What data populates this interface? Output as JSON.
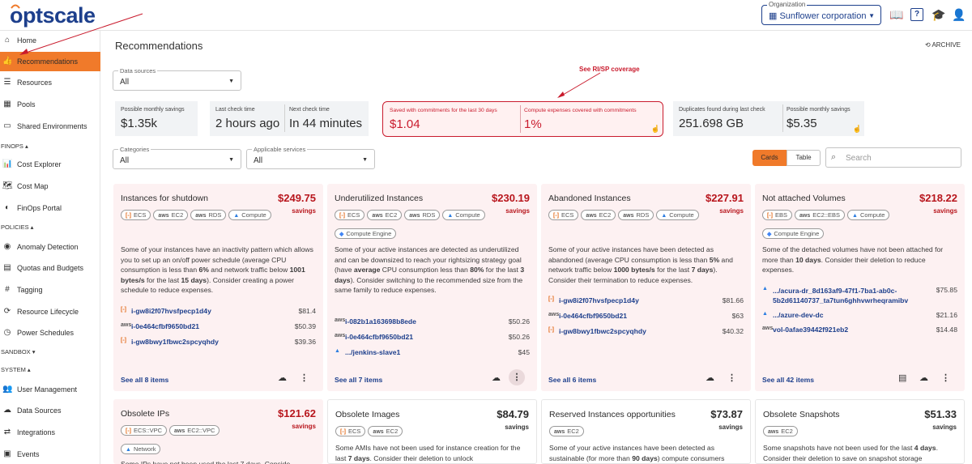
{
  "brand": {
    "logo": "optscale"
  },
  "header": {
    "org_label": "Organization",
    "org_value": "Sunflower corporation"
  },
  "sidebar": {
    "items": [
      {
        "label": "Home",
        "icon": "home-icon",
        "glyph": "⌂"
      },
      {
        "label": "Recommendations",
        "icon": "thumbs-up-icon",
        "glyph": "👍"
      },
      {
        "label": "Resources",
        "icon": "list-icon",
        "glyph": "☰"
      },
      {
        "label": "Pools",
        "icon": "pools-icon",
        "glyph": "▦"
      },
      {
        "label": "Shared Environments",
        "icon": "environment-icon",
        "glyph": "▭"
      },
      {
        "label": "Cost Explorer",
        "icon": "cost-explorer-icon",
        "glyph": "📊"
      },
      {
        "label": "Cost Map",
        "icon": "map-icon",
        "glyph": "🗺"
      },
      {
        "label": "FinOps Portal",
        "icon": "finops-portal-icon",
        "glyph": "◐"
      },
      {
        "label": "Anomaly Detection",
        "icon": "anomaly-icon",
        "glyph": "◉"
      },
      {
        "label": "Quotas and Budgets",
        "icon": "quotas-icon",
        "glyph": "▤"
      },
      {
        "label": "Tagging",
        "icon": "hash-icon",
        "glyph": "#"
      },
      {
        "label": "Resource Lifecycle",
        "icon": "lifecycle-icon",
        "glyph": "⟳"
      },
      {
        "label": "Power Schedules",
        "icon": "clock-icon",
        "glyph": "◷"
      },
      {
        "label": "User Management",
        "icon": "users-icon",
        "glyph": "👥"
      },
      {
        "label": "Data Sources",
        "icon": "cloud-icon",
        "glyph": "☁"
      },
      {
        "label": "Integrations",
        "icon": "integrations-icon",
        "glyph": "⇄"
      },
      {
        "label": "Events",
        "icon": "calendar-icon",
        "glyph": "▣"
      }
    ],
    "groups": {
      "finops": "FINOPS ▴",
      "policies": "POLICIES ▴",
      "sandbox": "SANDBOX ▾",
      "system": "SYSTEM ▴"
    }
  },
  "page": {
    "title": "Recommendations",
    "archive": "ARCHIVE"
  },
  "filters": {
    "data_sources": {
      "label": "Data sources",
      "value": "All"
    },
    "categories": {
      "label": "Categories",
      "value": "All"
    },
    "applicable_services": {
      "label": "Applicable services",
      "value": "All"
    },
    "search_placeholder": "Search"
  },
  "stats": {
    "possible_savings": {
      "label": "Possible monthly savings",
      "value": "$1.35k"
    },
    "last_check": {
      "label": "Last check time",
      "value": "2 hours ago"
    },
    "next_check": {
      "label": "Next check time",
      "value": "In 44 minutes"
    },
    "saved_commitments": {
      "label": "Saved with commitments for the last 30 days",
      "value": "$1.04"
    },
    "compute_covered": {
      "label": "Compute expenses covered with commitments",
      "value": "1%"
    },
    "duplicates": {
      "label": "Duplicates found during last check",
      "value": "251.698 GB"
    },
    "possible_savings_2": {
      "label": "Possible monthly savings",
      "value": "$5.35"
    }
  },
  "annotation": "See RI/SP coverage",
  "view_toggle": {
    "cards": "Cards",
    "table": "Table"
  },
  "cards": [
    {
      "title": "Instances for shutdown",
      "amount": "$249.75",
      "savings": "savings",
      "tags": [
        {
          "label": "ECS",
          "ic": "[-]",
          "c": "o"
        },
        {
          "label": "EC2",
          "ic": "aws",
          "c": "a"
        },
        {
          "label": "RDS",
          "ic": "aws",
          "c": "a"
        },
        {
          "label": "Compute",
          "ic": "▲",
          "c": "b"
        }
      ],
      "desc": "Some of your instances have an inactivity pattern which allows you to set up an on/off power schedule (average CPU consumption is less than <b>6%</b> and network traffic below <b>1001 bytes/s</b> for the last <b>15 days</b>). Consider creating a power schedule to reduce expenses.",
      "resources": [
        {
          "name": "i-gw8i2f07hvsfpecp1d4y",
          "value": "$81.4",
          "ic": "[-]",
          "c": "o"
        },
        {
          "name": "i-0e464cfbf9650bd21",
          "value": "$50.39",
          "ic": "aws",
          "c": "a"
        },
        {
          "name": "i-gw8bwy1fbwc2spcyqhdy",
          "value": "$39.36",
          "ic": "[-]",
          "c": "o"
        }
      ],
      "see_all": "See all 8 items"
    },
    {
      "title": "Underutilized Instances",
      "amount": "$230.19",
      "savings": "savings",
      "tags": [
        {
          "label": "ECS",
          "ic": "[-]",
          "c": "o"
        },
        {
          "label": "EC2",
          "ic": "aws",
          "c": "a"
        },
        {
          "label": "RDS",
          "ic": "aws",
          "c": "a"
        },
        {
          "label": "Compute",
          "ic": "▲",
          "c": "b"
        },
        {
          "label": "Compute Engine",
          "ic": "◆",
          "c": "g"
        }
      ],
      "desc": "Some of your active instances are detected as underutilized and can be downsized to reach your rightsizing strategy goal (have <b>average</b> CPU consumption less than <b>80%</b> for the last <b>3 days</b>). Consider switching to the recommended size from the same family to reduce expenses.",
      "resources": [
        {
          "name": "i-082b1a163698b8ede",
          "value": "$50.26",
          "ic": "aws",
          "c": "a"
        },
        {
          "name": "i-0e464cfbf9650bd21",
          "value": "$50.26",
          "ic": "aws",
          "c": "a"
        },
        {
          "name": ".../jenkins-slave1",
          "value": "$45",
          "ic": "▲",
          "c": "b"
        }
      ],
      "see_all": "See all 7 items"
    },
    {
      "title": "Abandoned Instances",
      "amount": "$227.91",
      "savings": "savings",
      "tags": [
        {
          "label": "ECS",
          "ic": "[-]",
          "c": "o"
        },
        {
          "label": "EC2",
          "ic": "aws",
          "c": "a"
        },
        {
          "label": "RDS",
          "ic": "aws",
          "c": "a"
        },
        {
          "label": "Compute",
          "ic": "▲",
          "c": "b"
        }
      ],
      "desc": "Some of your active instances have been detected as abandoned (average CPU consumption is less than <b>5%</b> and network traffic below <b>1000 bytes/s</b> for the last <b>7 days</b>). Consider their termination to reduce expenses.",
      "resources": [
        {
          "name": "i-gw8i2f07hvsfpecp1d4y",
          "value": "$81.66",
          "ic": "[-]",
          "c": "o"
        },
        {
          "name": "i-0e464cfbf9650bd21",
          "value": "$63",
          "ic": "aws",
          "c": "a"
        },
        {
          "name": "i-gw8bwy1fbwc2spcyqhdy",
          "value": "$40.32",
          "ic": "[-]",
          "c": "o"
        }
      ],
      "see_all": "See all 6 items"
    },
    {
      "title": "Not attached Volumes",
      "amount": "$218.22",
      "savings": "savings",
      "tags": [
        {
          "label": "EBS",
          "ic": "[-]",
          "c": "o"
        },
        {
          "label": "EC2::EBS",
          "ic": "aws",
          "c": "a"
        },
        {
          "label": "Compute",
          "ic": "▲",
          "c": "b"
        },
        {
          "label": "Compute Engine",
          "ic": "◆",
          "c": "g"
        }
      ],
      "desc": "Some of the detached volumes have not been attached for more than <b>10 days</b>. Consider their deletion to reduce expenses.",
      "resources": [
        {
          "name": ".../acura-dr_8d163af9-47f1-7ba1-ab0c-5b2d61140737_ta7tun6ghhvwrheqramibv",
          "value": "$75.85",
          "ic": "▲",
          "c": "b"
        },
        {
          "name": ".../azure-dev-dc",
          "value": "$21.16",
          "ic": "▲",
          "c": "b"
        },
        {
          "name": "vol-0afae39442f921eb2",
          "value": "$14.48",
          "ic": "aws",
          "c": "a"
        }
      ],
      "see_all": "See all 42 items"
    },
    {
      "title": "Obsolete IPs",
      "amount": "$121.62",
      "savings": "savings",
      "tags": [
        {
          "label": "ECS::VPC",
          "ic": "[-]",
          "c": "o"
        },
        {
          "label": "EC2::VPC",
          "ic": "aws",
          "c": "a"
        },
        {
          "label": "Network",
          "ic": "▲",
          "c": "b"
        }
      ],
      "desc": "Some IPs have not been used the last 7 days. Conside"
    },
    {
      "title": "Obsolete Images",
      "amount": "$84.79",
      "savings": "savings",
      "tags": [
        {
          "label": "ECS",
          "ic": "[-]",
          "c": "o"
        },
        {
          "label": "EC2",
          "ic": "aws",
          "c": "a"
        }
      ],
      "desc": "Some AMIs have not been used for instance creation for the last <b>7 days</b>. Consider their deletion to unlock"
    },
    {
      "title": "Reserved Instances opportunities",
      "amount": "$73.87",
      "savings": "savings",
      "tags": [
        {
          "label": "EC2",
          "ic": "aws",
          "c": "a"
        }
      ],
      "desc": "Some of your active instances have been detected as sustainable (for more than <b>90 days</b>) compute consumers"
    },
    {
      "title": "Obsolete Snapshots",
      "amount": "$51.33",
      "savings": "savings",
      "tags": [
        {
          "label": "EC2",
          "ic": "aws",
          "c": "a"
        }
      ],
      "desc": "Some snapshots have not been used for the last <b>4 days</b>. Consider their deletion to save on snapshot storage"
    }
  ]
}
